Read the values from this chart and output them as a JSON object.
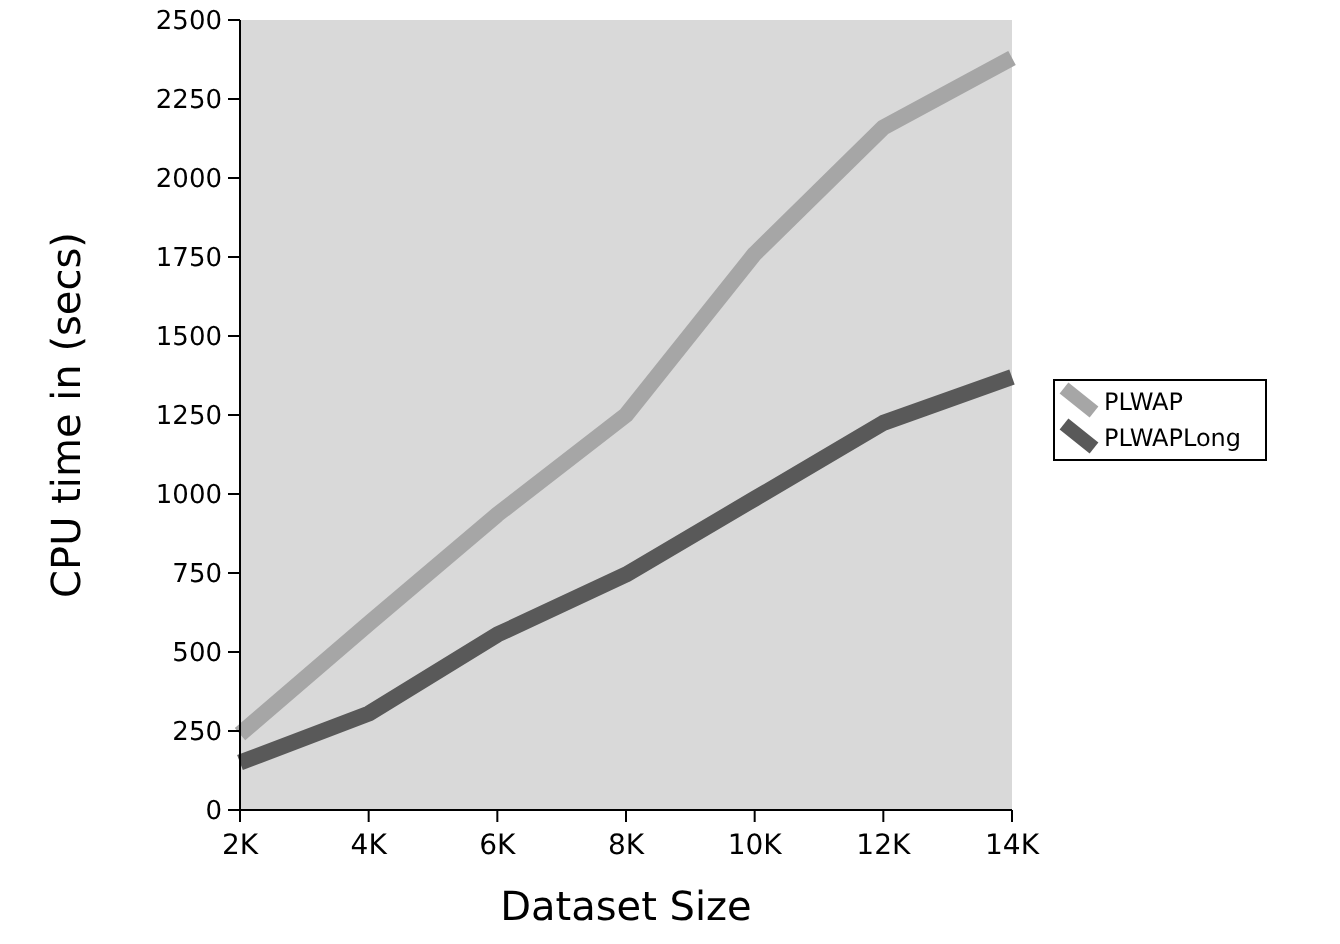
{
  "chart_data": {
    "type": "line",
    "xlabel": "Dataset Size",
    "ylabel": "CPU time in (secs)",
    "categories": [
      "2K",
      "4K",
      "6K",
      "8K",
      "10K",
      "12K",
      "14K"
    ],
    "series": [
      {
        "name": "PLWAP",
        "color": "#a6a6a6",
        "values": [
          240,
          590,
          935,
          1250,
          1760,
          2160,
          2380
        ]
      },
      {
        "name": "PLWAPLong",
        "color": "#595959",
        "values": [
          150,
          305,
          555,
          745,
          985,
          1225,
          1370
        ]
      }
    ],
    "ylim": [
      0,
      2500
    ],
    "yticks": [
      0,
      250,
      500,
      750,
      1000,
      1250,
      1500,
      1750,
      2000,
      2250,
      2500
    ],
    "grid": false,
    "legend": "right",
    "marker": "none",
    "line_style": "solid"
  }
}
